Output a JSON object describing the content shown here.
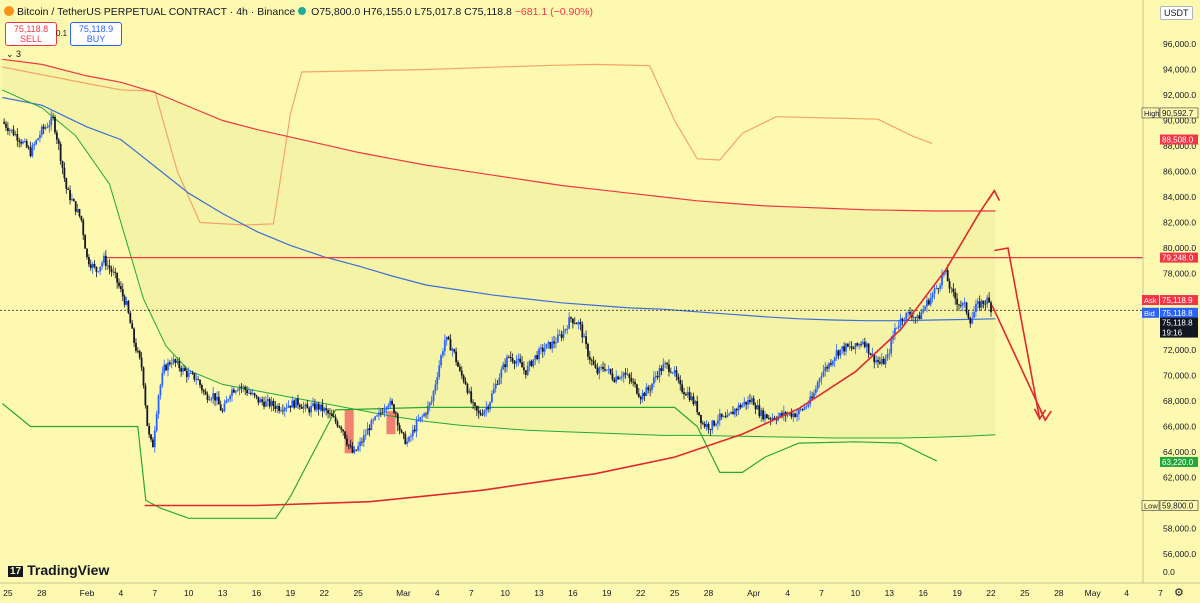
{
  "header": {
    "symbol": "Bitcoin / TetherUS PERPETUAL CONTRACT · 4h · Binance",
    "open": "O75,800.0",
    "high": "H76,155.0",
    "low": "L75,017.8",
    "close": "C75,118.8",
    "change": "−681.1 (−0.90%)"
  },
  "trade": {
    "sell_price": "75,118.8",
    "sell_label": "SELL",
    "buy_price": "75,118.9",
    "buy_label": "BUY",
    "spread": "0.1"
  },
  "indicators_toggle": "⌄ 3",
  "currency": "USDT",
  "logo": "TradingView",
  "colors": {
    "background": "#fef9b0",
    "up_candle": "#2962ff",
    "down_candle": "#131722",
    "red_line": "#f23645",
    "green_line": "#22a83a",
    "blue_ma": "#3d6fd8",
    "orange_band": "#f5a46b"
  },
  "chart_data": {
    "type": "candlestick",
    "y_axis": {
      "range": [
        54800,
        97500
      ],
      "ticks": [
        96000,
        94000,
        92000,
        90000,
        88000,
        86000,
        84000,
        82000,
        80000,
        78000,
        76000,
        74000,
        72000,
        70000,
        68000,
        66000,
        64000,
        62000,
        60000,
        58000,
        56000
      ],
      "tick_labels": [
        "96,000.0",
        "94,000.0",
        "92,000.0",
        "90,000.0",
        "88,000.0",
        "86,000.0",
        "84,000.0",
        "82,000.0",
        "80,000.0",
        "78,000.0",
        "76,000.0",
        "74,000.0",
        "72,000.0",
        "70,000.0",
        "68,000.0",
        "66,000.0",
        "64,000.0",
        "62,000.0",
        "60,000.0",
        "58,000.0",
        "56,000.0"
      ],
      "bottom_label": "0.0"
    },
    "x_axis": {
      "labels": [
        {
          "text": "25",
          "day": -7
        },
        {
          "text": "28",
          "day": -4
        },
        {
          "text": "Feb",
          "day": 0
        },
        {
          "text": "4",
          "day": 3
        },
        {
          "text": "7",
          "day": 6
        },
        {
          "text": "10",
          "day": 9
        },
        {
          "text": "13",
          "day": 12
        },
        {
          "text": "16",
          "day": 15
        },
        {
          "text": "19",
          "day": 18
        },
        {
          "text": "22",
          "day": 21
        },
        {
          "text": "25",
          "day": 24
        },
        {
          "text": "Mar",
          "day": 28
        },
        {
          "text": "4",
          "day": 31
        },
        {
          "text": "7",
          "day": 34
        },
        {
          "text": "10",
          "day": 37
        },
        {
          "text": "13",
          "day": 40
        },
        {
          "text": "16",
          "day": 43
        },
        {
          "text": "19",
          "day": 46
        },
        {
          "text": "22",
          "day": 49
        },
        {
          "text": "25",
          "day": 52
        },
        {
          "text": "28",
          "day": 55
        },
        {
          "text": "Apr",
          "day": 59
        },
        {
          "text": "4",
          "day": 62
        },
        {
          "text": "7",
          "day": 65
        },
        {
          "text": "10",
          "day": 68
        },
        {
          "text": "13",
          "day": 71
        },
        {
          "text": "16",
          "day": 74
        },
        {
          "text": "19",
          "day": 77
        },
        {
          "text": "22",
          "day": 80
        },
        {
          "text": "25",
          "day": 83
        },
        {
          "text": "28",
          "day": 86
        },
        {
          "text": "May",
          "day": 89
        },
        {
          "text": "4",
          "day": 92
        },
        {
          "text": "7",
          "day": 95
        }
      ]
    },
    "price_path": [
      [
        -7.5,
        89900
      ],
      [
        -6,
        88600
      ],
      [
        -5,
        87500
      ],
      [
        -4,
        89200
      ],
      [
        -3,
        90100
      ],
      [
        -2.5,
        88000
      ],
      [
        -1.8,
        84500
      ],
      [
        -1.2,
        83500
      ],
      [
        -0.5,
        82200
      ],
      [
        0,
        79200
      ],
      [
        0.8,
        78200
      ],
      [
        1.5,
        79100
      ],
      [
        2.5,
        77700
      ],
      [
        3.5,
        75500
      ],
      [
        4.2,
        72500
      ],
      [
        4.9,
        70500
      ],
      [
        5.4,
        65500
      ],
      [
        5.8,
        64300
      ],
      [
        6.3,
        68400
      ],
      [
        6.8,
        70500
      ],
      [
        7.5,
        71200
      ],
      [
        8.3,
        70600
      ],
      [
        9,
        70000
      ],
      [
        9.7,
        69800
      ],
      [
        10.5,
        68400
      ],
      [
        11.2,
        68500
      ],
      [
        12,
        67100
      ],
      [
        12.7,
        68800
      ],
      [
        13.5,
        69200
      ],
      [
        14.3,
        68700
      ],
      [
        15.2,
        68000
      ],
      [
        16.1,
        67800
      ],
      [
        17,
        67500
      ],
      [
        17.8,
        67700
      ],
      [
        18.7,
        67900
      ],
      [
        19.5,
        67300
      ],
      [
        20.3,
        67600
      ],
      [
        21.1,
        67200
      ],
      [
        22,
        66400
      ],
      [
        22.6,
        65900
      ],
      [
        23.1,
        64600
      ],
      [
        23.6,
        63800
      ],
      [
        24.3,
        64800
      ],
      [
        25,
        66000
      ],
      [
        25.8,
        66800
      ],
      [
        26.6,
        68000
      ],
      [
        27.3,
        67200
      ],
      [
        27.8,
        65300
      ],
      [
        28.4,
        64700
      ],
      [
        29.1,
        66100
      ],
      [
        29.8,
        66900
      ],
      [
        30.5,
        68000
      ],
      [
        31.1,
        70600
      ],
      [
        31.7,
        72900
      ],
      [
        32.4,
        72000
      ],
      [
        33,
        70200
      ],
      [
        33.5,
        69500
      ],
      [
        34.1,
        67600
      ],
      [
        34.7,
        66900
      ],
      [
        35.5,
        67700
      ],
      [
        36.4,
        69800
      ],
      [
        37.3,
        71500
      ],
      [
        38,
        71200
      ],
      [
        38.8,
        70300
      ],
      [
        39.6,
        71400
      ],
      [
        40.4,
        72100
      ],
      [
        41.2,
        72500
      ],
      [
        42,
        73200
      ],
      [
        42.8,
        74500
      ],
      [
        43.6,
        74000
      ],
      [
        44.3,
        71800
      ],
      [
        45.1,
        70200
      ],
      [
        45.8,
        70700
      ],
      [
        46.6,
        69800
      ],
      [
        47.5,
        70200
      ],
      [
        48.3,
        69400
      ],
      [
        49,
        68400
      ],
      [
        49.8,
        69000
      ],
      [
        50.4,
        70100
      ],
      [
        51.1,
        70800
      ],
      [
        51.8,
        70500
      ],
      [
        52.5,
        69000
      ],
      [
        53.2,
        68600
      ],
      [
        53.9,
        67600
      ],
      [
        54.5,
        66200
      ],
      [
        55.2,
        66000
      ],
      [
        55.9,
        66700
      ],
      [
        56.6,
        66500
      ],
      [
        57.3,
        67300
      ],
      [
        58.1,
        67800
      ],
      [
        58.9,
        68100
      ],
      [
        59.6,
        67000
      ],
      [
        60.4,
        66700
      ],
      [
        61.2,
        66800
      ],
      [
        62,
        67000
      ],
      [
        62.8,
        67000
      ],
      [
        63.5,
        67500
      ],
      [
        64.2,
        68200
      ],
      [
        64.9,
        70100
      ],
      [
        65.6,
        70800
      ],
      [
        66.3,
        71800
      ],
      [
        67.1,
        72200
      ],
      [
        67.9,
        72100
      ],
      [
        68.7,
        72800
      ],
      [
        69.5,
        71500
      ],
      [
        70.2,
        70900
      ],
      [
        70.8,
        71300
      ],
      [
        71.5,
        73700
      ],
      [
        72.2,
        74600
      ],
      [
        72.9,
        74900
      ],
      [
        73.5,
        74400
      ],
      [
        74.2,
        75500
      ],
      [
        74.8,
        76300
      ],
      [
        75.4,
        77200
      ],
      [
        75.9,
        78200
      ],
      [
        76.5,
        76500
      ],
      [
        77.1,
        75700
      ],
      [
        77.7,
        75400
      ],
      [
        78.2,
        74300
      ],
      [
        78.7,
        75400
      ],
      [
        79.2,
        75700
      ],
      [
        79.7,
        75900
      ],
      [
        80.1,
        75119
      ]
    ],
    "lines": {
      "blue_ma": [
        [
          -7.5,
          91800
        ],
        [
          -4,
          91200
        ],
        [
          0,
          89500
        ],
        [
          3,
          88500
        ],
        [
          6,
          86400
        ],
        [
          9,
          84300
        ],
        [
          12,
          82700
        ],
        [
          15,
          81300
        ],
        [
          18,
          80200
        ],
        [
          21,
          79300
        ],
        [
          24,
          78600
        ],
        [
          27,
          77800
        ],
        [
          30,
          77100
        ],
        [
          33,
          76700
        ],
        [
          36,
          76300
        ],
        [
          39,
          76000
        ],
        [
          42,
          75700
        ],
        [
          45,
          75500
        ],
        [
          48,
          75300
        ],
        [
          51,
          75200
        ],
        [
          54,
          75000
        ],
        [
          57,
          74800
        ],
        [
          60,
          74600
        ],
        [
          63,
          74450
        ],
        [
          66,
          74350
        ],
        [
          69,
          74300
        ],
        [
          72,
          74300
        ],
        [
          75,
          74350
        ],
        [
          78,
          74400
        ],
        [
          80.4,
          74450
        ]
      ],
      "red_ma": [
        [
          -7.5,
          94800
        ],
        [
          -4,
          94400
        ],
        [
          0,
          93500
        ],
        [
          3,
          93000
        ],
        [
          6,
          92200
        ],
        [
          9,
          91100
        ],
        [
          12,
          90000
        ],
        [
          15,
          89300
        ],
        [
          18,
          88700
        ],
        [
          21,
          88100
        ],
        [
          24,
          87500
        ],
        [
          27,
          87000
        ],
        [
          30,
          86500
        ],
        [
          33,
          86100
        ],
        [
          36,
          85700
        ],
        [
          39,
          85300
        ],
        [
          42,
          84900
        ],
        [
          45,
          84600
        ],
        [
          48,
          84300
        ],
        [
          51,
          84000
        ],
        [
          54,
          83700
        ],
        [
          57,
          83500
        ],
        [
          60,
          83300
        ],
        [
          63,
          83200
        ],
        [
          66,
          83100
        ],
        [
          69,
          83000
        ],
        [
          72,
          82950
        ],
        [
          75,
          82900
        ],
        [
          78,
          82900
        ],
        [
          80.4,
          82900
        ]
      ],
      "green_ma": [
        [
          -7.5,
          92400
        ],
        [
          -4,
          91000
        ],
        [
          -1,
          88800
        ],
        [
          2,
          85000
        ],
        [
          5,
          76000
        ],
        [
          7,
          72300
        ],
        [
          9,
          70400
        ],
        [
          12,
          69300
        ],
        [
          15,
          68800
        ],
        [
          18,
          68300
        ],
        [
          21,
          67800
        ],
        [
          24,
          67300
        ],
        [
          27,
          66800
        ],
        [
          30,
          66400
        ],
        [
          33,
          66100
        ],
        [
          36,
          65900
        ],
        [
          39,
          65700
        ],
        [
          42,
          65600
        ],
        [
          45,
          65500
        ],
        [
          48,
          65400
        ],
        [
          51,
          65300
        ],
        [
          54,
          65300
        ],
        [
          57,
          65250
        ],
        [
          60,
          65200
        ],
        [
          63,
          65150
        ],
        [
          66,
          65100
        ],
        [
          69,
          65100
        ],
        [
          72,
          65100
        ],
        [
          75,
          65150
        ],
        [
          78,
          65250
        ],
        [
          80.4,
          65350
        ]
      ],
      "orange_band": [
        [
          -7.5,
          94200
        ],
        [
          0,
          92900
        ],
        [
          3,
          92400
        ],
        [
          6,
          92300
        ],
        [
          8,
          86000
        ],
        [
          10,
          82000
        ],
        [
          14,
          81800
        ],
        [
          16.5,
          81900
        ],
        [
          18,
          90500
        ],
        [
          19,
          93800
        ],
        [
          30,
          94000
        ],
        [
          40,
          94300
        ],
        [
          45,
          94400
        ],
        [
          49.8,
          94300
        ],
        [
          52,
          90000
        ],
        [
          54,
          87000
        ],
        [
          56,
          86900
        ],
        [
          58,
          89000
        ],
        [
          61,
          90300
        ],
        [
          70,
          90100
        ],
        [
          73,
          88800
        ],
        [
          74.8,
          88200
        ]
      ],
      "green_band": [
        [
          -7.5,
          67800
        ],
        [
          -5,
          66000
        ],
        [
          2.5,
          66000
        ],
        [
          4.5,
          66000
        ],
        [
          5.2,
          60200
        ],
        [
          6.5,
          59600
        ],
        [
          9,
          58800
        ],
        [
          16.7,
          58800
        ],
        [
          18,
          60500
        ],
        [
          22,
          67300
        ],
        [
          30,
          67500
        ],
        [
          45,
          67500
        ],
        [
          52,
          67500
        ],
        [
          54,
          66000
        ],
        [
          56,
          62400
        ],
        [
          58,
          62400
        ],
        [
          60,
          63600
        ],
        [
          63,
          64700
        ],
        [
          68,
          64800
        ],
        [
          72,
          64700
        ],
        [
          74,
          63800
        ],
        [
          75.2,
          63300
        ]
      ],
      "curve": [
        [
          5.1,
          59800
        ],
        [
          15,
          59800
        ],
        [
          25,
          60100
        ],
        [
          35,
          61000
        ],
        [
          45,
          62300
        ],
        [
          52,
          63600
        ],
        [
          58,
          65400
        ],
        [
          63,
          67400
        ],
        [
          68,
          70300
        ],
        [
          72,
          73600
        ],
        [
          76,
          78300
        ],
        [
          79,
          82800
        ],
        [
          80.3,
          84500
        ]
      ],
      "arrow_down_1": [
        [
          80.3,
          79800
        ],
        [
          81.5,
          80000
        ],
        [
          84.3,
          66600
        ]
      ],
      "arrow_down_2": [
        [
          80.1,
          75500
        ],
        [
          84.8,
          66500
        ]
      ]
    },
    "levels": [
      {
        "name": "resistance",
        "value": 79248,
        "label": "79,248.0",
        "color": "#f23645"
      },
      {
        "name": "current",
        "value": 75119,
        "label": "75,118.8",
        "color": "#131722"
      }
    ],
    "price_tags": [
      {
        "prefix": "High",
        "value": 90592.7,
        "label": "90,592.7",
        "style": "outline"
      },
      {
        "prefix": "",
        "value": 88508,
        "label": "88,508.0",
        "style": "red"
      },
      {
        "prefix": "",
        "value": 79248,
        "label": "79,248.0",
        "style": "red"
      },
      {
        "prefix": "Ask",
        "value": 75919,
        "label": "75,118.9",
        "style": "red"
      },
      {
        "prefix": "Bid",
        "value": 74919,
        "label": "75,118.8",
        "style": "blue"
      },
      {
        "prefix": "",
        "value": 74150,
        "label": "75,118.8",
        "style": "dark",
        "sub": "19:16"
      },
      {
        "prefix": "",
        "value": 63220,
        "label": "63,220.0",
        "style": "green"
      },
      {
        "prefix": "Low",
        "value": 59800,
        "label": "59,800.0",
        "style": "outline"
      }
    ],
    "highlight_boxes": [
      {
        "from": [
          22.8,
          67300
        ],
        "to": [
          23.6,
          63900
        ]
      },
      {
        "from": [
          26.5,
          67200
        ],
        "to": [
          27.3,
          65400
        ]
      }
    ]
  }
}
